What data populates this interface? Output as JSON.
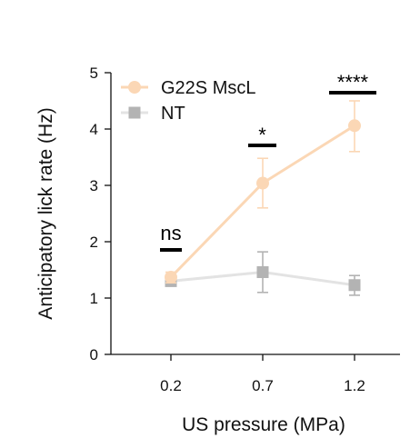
{
  "chart_data": {
    "type": "line",
    "categories": [
      "0.2",
      "0.7",
      "1.2"
    ],
    "xlabel": "US pressure (MPa)",
    "ylabel": "Anticipatory lick rate (Hz)",
    "ylim": [
      0,
      5
    ],
    "yticks": [
      "0",
      "1",
      "2",
      "3",
      "4",
      "5"
    ],
    "grid": false,
    "legend_position": "top-left",
    "series": [
      {
        "name": "G22S MscL",
        "marker": "circle",
        "color": "#fbd7b5",
        "values": [
          1.37,
          3.04,
          4.06
        ],
        "err_low": [
          1.27,
          2.6,
          3.6
        ],
        "err_high": [
          1.46,
          3.48,
          4.5
        ]
      },
      {
        "name": "NT",
        "marker": "square",
        "color": "#b3b3b3",
        "line_color": "#e3e3e3",
        "values": [
          1.3,
          1.46,
          1.23
        ],
        "err_low": [
          1.22,
          1.1,
          1.05
        ],
        "err_high": [
          1.37,
          1.82,
          1.4
        ]
      }
    ],
    "significance": [
      "ns",
      "*",
      "****"
    ]
  }
}
